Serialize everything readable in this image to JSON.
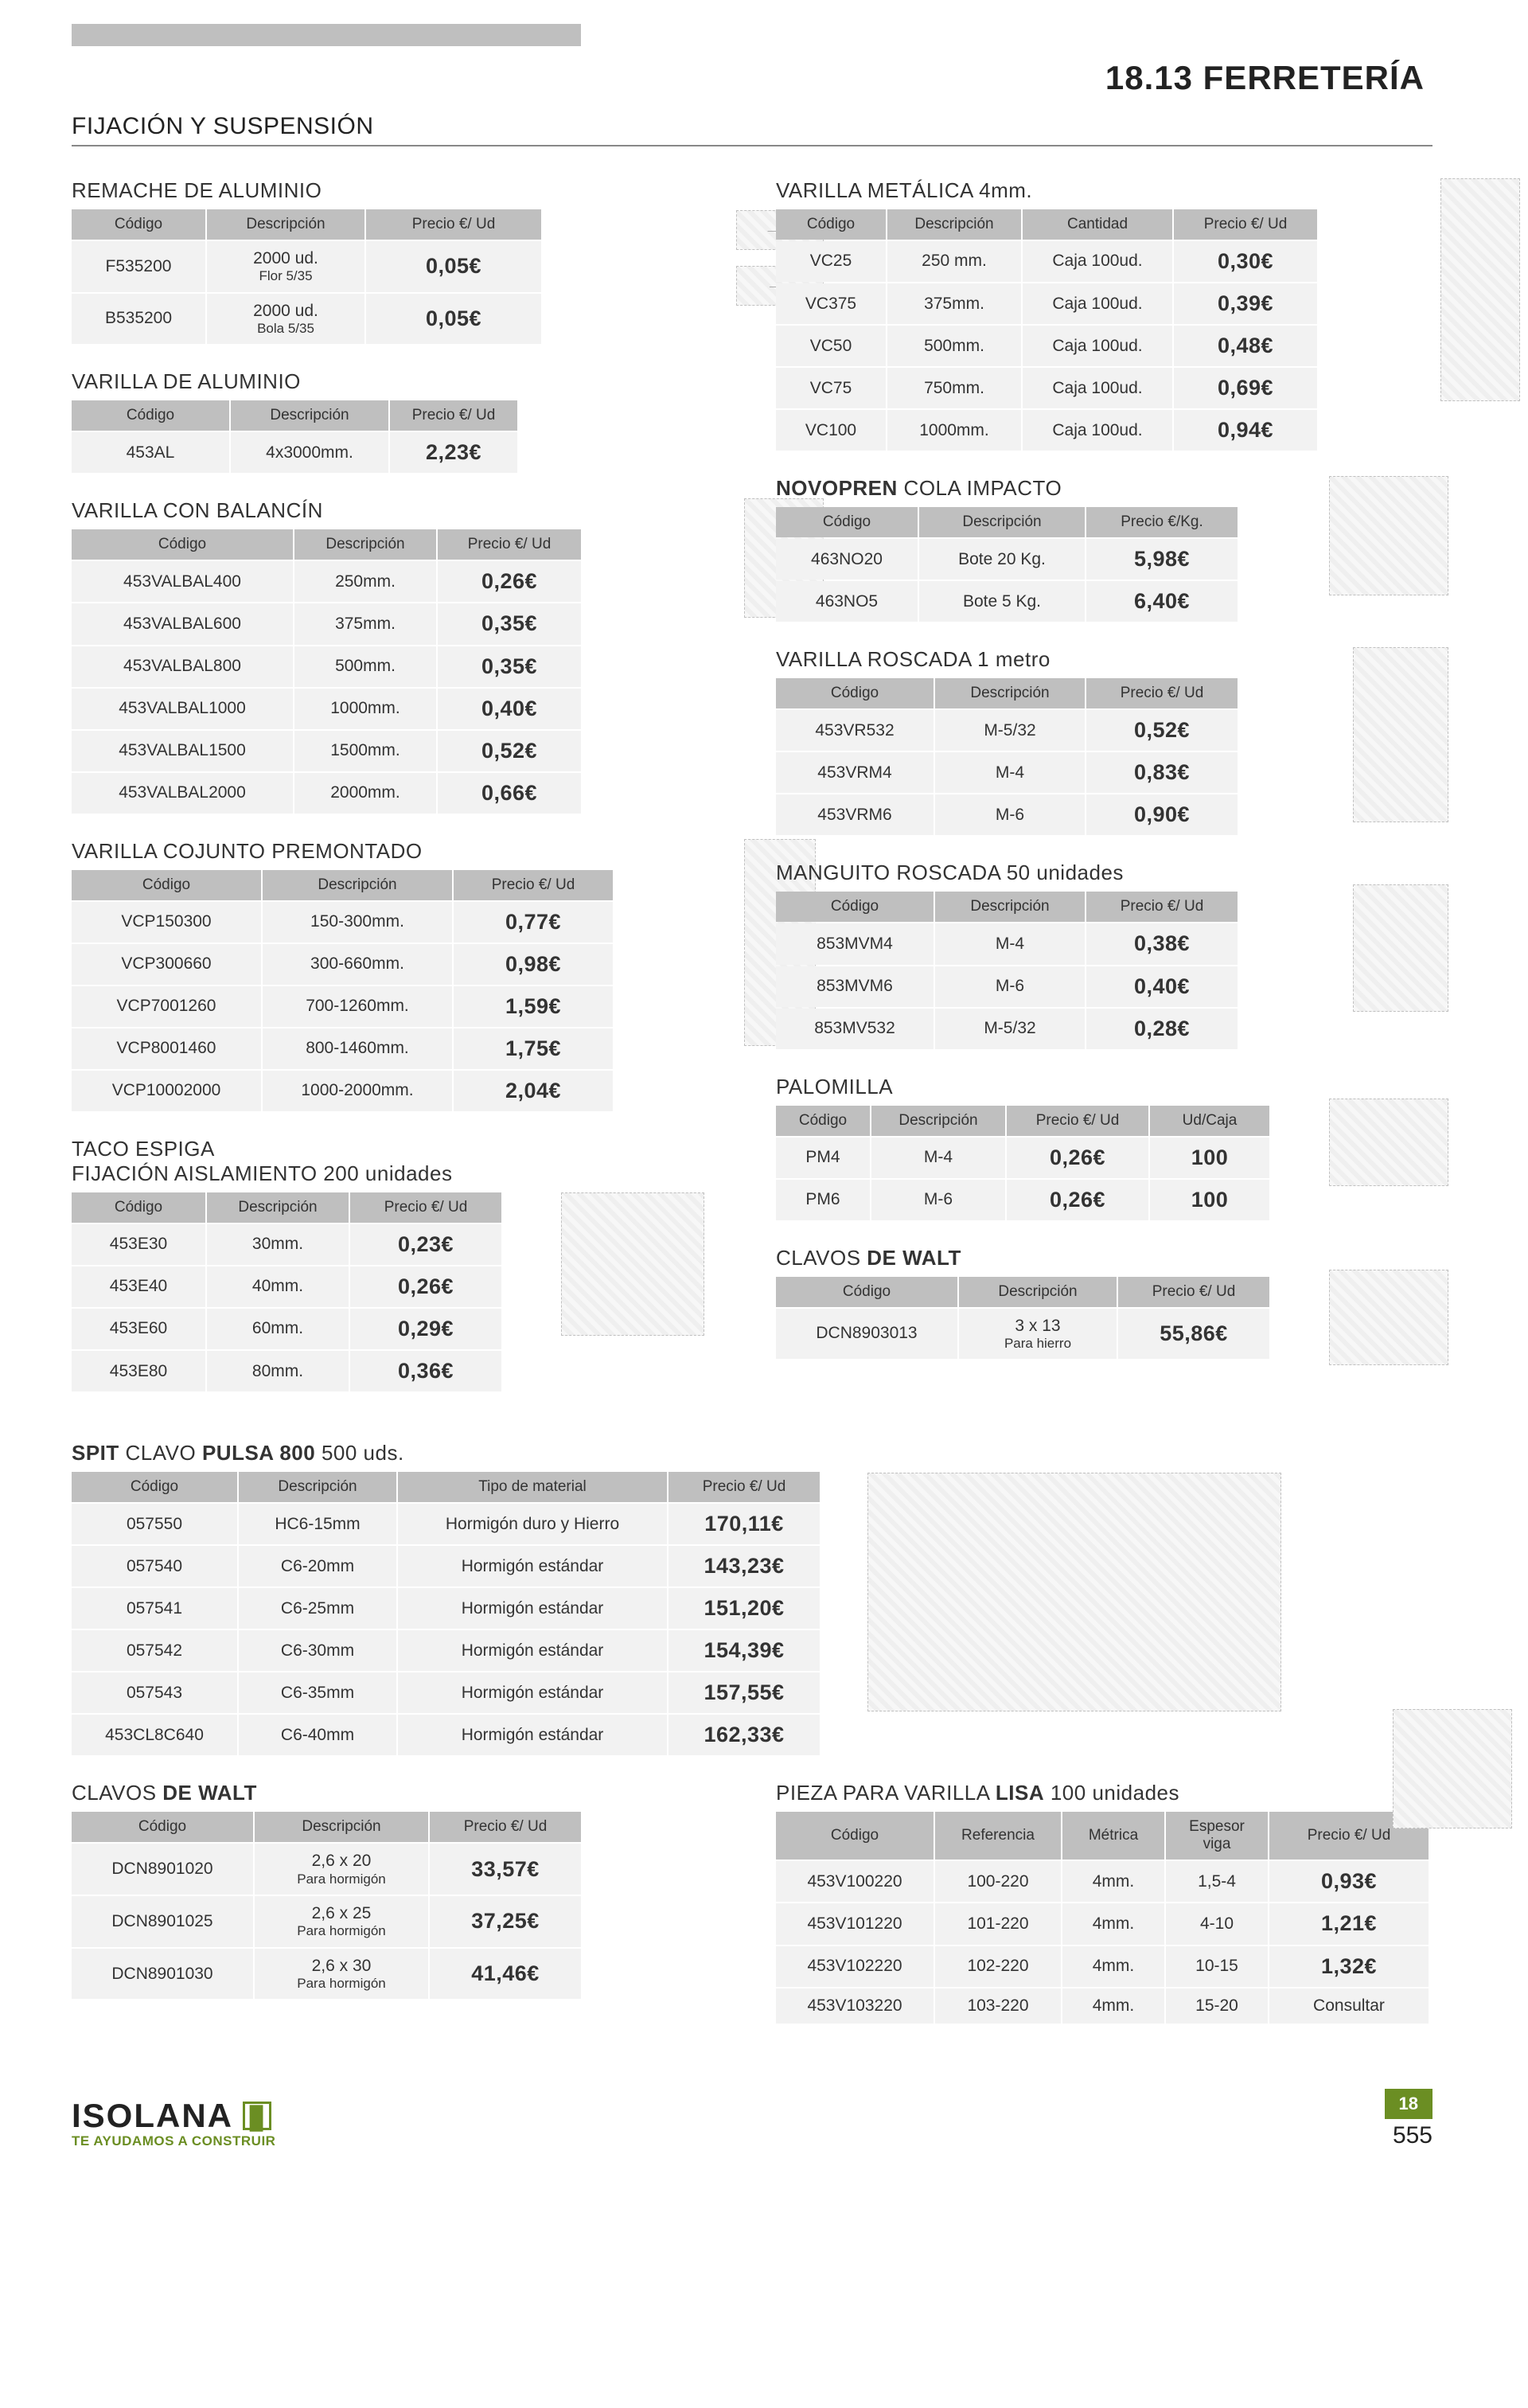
{
  "document": {
    "header": "18.13 FERRETERÍA",
    "section": "FIJACIÓN Y SUSPENSIÓN",
    "footer": {
      "brand": "ISOLANA",
      "tagline": "TE AYUDAMOS A CONSTRUIR",
      "chapter": "18",
      "page": "555"
    }
  },
  "headers": {
    "codigo": "Código",
    "descripcion": "Descripción",
    "precio_ud": "Precio €/ Ud",
    "precio_kg": "Precio €/Kg.",
    "cantidad": "Cantidad",
    "tipo_material": "Tipo de material",
    "referencia": "Referencia",
    "metrica": "Métrica",
    "espesor_viga": "Espesor viga",
    "ud_caja": "Ud/Caja"
  },
  "tables": {
    "remache": {
      "title": "REMACHE DE ALUMINIO",
      "rows": [
        {
          "code": "F535200",
          "desc": "2000 ud.",
          "desc2": "Flor 5/35",
          "price": "0,05€"
        },
        {
          "code": "B535200",
          "desc": "2000 ud.",
          "desc2": "Bola 5/35",
          "price": "0,05€"
        }
      ]
    },
    "varilla_al": {
      "title": "VARILLA DE ALUMINIO",
      "rows": [
        {
          "code": "453AL",
          "desc": "4x3000mm.",
          "price": "2,23€"
        }
      ]
    },
    "balancin": {
      "title": "VARILLA CON BALANCÍN",
      "rows": [
        {
          "code": "453VALBAL400",
          "desc": "250mm.",
          "price": "0,26€"
        },
        {
          "code": "453VALBAL600",
          "desc": "375mm.",
          "price": "0,35€"
        },
        {
          "code": "453VALBAL800",
          "desc": "500mm.",
          "price": "0,35€"
        },
        {
          "code": "453VALBAL1000",
          "desc": "1000mm.",
          "price": "0,40€"
        },
        {
          "code": "453VALBAL1500",
          "desc": "1500mm.",
          "price": "0,52€"
        },
        {
          "code": "453VALBAL2000",
          "desc": "2000mm.",
          "price": "0,66€"
        }
      ]
    },
    "premontado": {
      "title": "VARILLA COJUNTO PREMONTADO",
      "rows": [
        {
          "code": "VCP150300",
          "desc": "150-300mm.",
          "price": "0,77€"
        },
        {
          "code": "VCP300660",
          "desc": "300-660mm.",
          "price": "0,98€"
        },
        {
          "code": "VCP7001260",
          "desc": "700-1260mm.",
          "price": "1,59€"
        },
        {
          "code": "VCP8001460",
          "desc": "800-1460mm.",
          "price": "1,75€"
        },
        {
          "code": "VCP10002000",
          "desc": "1000-2000mm.",
          "price": "2,04€"
        }
      ]
    },
    "taco": {
      "title_a": "TACO ESPIGA",
      "title_b": "FIJACIÓN AISLAMIENTO 200 unidades",
      "rows": [
        {
          "code": "453E30",
          "desc": "30mm.",
          "price": "0,23€"
        },
        {
          "code": "453E40",
          "desc": "40mm.",
          "price": "0,26€"
        },
        {
          "code": "453E60",
          "desc": "60mm.",
          "price": "0,29€"
        },
        {
          "code": "453E80",
          "desc": "80mm.",
          "price": "0,36€"
        }
      ]
    },
    "varilla_met": {
      "title": "VARILLA METÁLICA 4mm.",
      "rows": [
        {
          "code": "VC25",
          "desc": "250 mm.",
          "qty": "Caja 100ud.",
          "price": "0,30€"
        },
        {
          "code": "VC375",
          "desc": "375mm.",
          "qty": "Caja 100ud.",
          "price": "0,39€"
        },
        {
          "code": "VC50",
          "desc": "500mm.",
          "qty": "Caja 100ud.",
          "price": "0,48€"
        },
        {
          "code": "VC75",
          "desc": "750mm.",
          "qty": "Caja 100ud.",
          "price": "0,69€"
        },
        {
          "code": "VC100",
          "desc": "1000mm.",
          "qty": "Caja 100ud.",
          "price": "0,94€"
        }
      ]
    },
    "novopren": {
      "title_a": "NOVOPREN",
      "title_b": " COLA IMPACTO",
      "rows": [
        {
          "code": "463NO20",
          "desc": "Bote 20 Kg.",
          "price": "5,98€"
        },
        {
          "code": "463NO5",
          "desc": "Bote 5 Kg.",
          "price": "6,40€"
        }
      ]
    },
    "roscada": {
      "title": "VARILLA ROSCADA 1 metro",
      "rows": [
        {
          "code": "453VR532",
          "desc": "M-5/32",
          "price": "0,52€"
        },
        {
          "code": "453VRM4",
          "desc": "M-4",
          "price": "0,83€"
        },
        {
          "code": "453VRM6",
          "desc": "M-6",
          "price": "0,90€"
        }
      ]
    },
    "manguito": {
      "title": "MANGUITO ROSCADA 50 unidades",
      "rows": [
        {
          "code": "853MVM4",
          "desc": "M-4",
          "price": "0,38€"
        },
        {
          "code": "853MVM6",
          "desc": "M-6",
          "price": "0,40€"
        },
        {
          "code": "853MV532",
          "desc": "M-5/32",
          "price": "0,28€"
        }
      ]
    },
    "palomilla": {
      "title": "PALOMILLA",
      "rows": [
        {
          "code": "PM4",
          "desc": "M-4",
          "price": "0,26€",
          "box": "100"
        },
        {
          "code": "PM6",
          "desc": "M-6",
          "price": "0,26€",
          "box": "100"
        }
      ]
    },
    "dewalt1": {
      "title_a": "CLAVOS ",
      "title_b": "DE WALT",
      "rows": [
        {
          "code": "DCN8903013",
          "desc": "3 x 13",
          "desc2": "Para hierro",
          "price": "55,86€"
        }
      ]
    },
    "spit": {
      "title_a": "SPIT",
      "title_b": " CLAVO ",
      "title_c": "PULSA 800",
      "title_d": " 500 uds.",
      "rows": [
        {
          "code": "057550",
          "desc": "HC6-15mm",
          "mat": "Hormigón duro y Hierro",
          "price": "170,11€"
        },
        {
          "code": "057540",
          "desc": "C6-20mm",
          "mat": "Hormigón estándar",
          "price": "143,23€"
        },
        {
          "code": "057541",
          "desc": "C6-25mm",
          "mat": "Hormigón estándar",
          "price": "151,20€"
        },
        {
          "code": "057542",
          "desc": "C6-30mm",
          "mat": "Hormigón estándar",
          "price": "154,39€"
        },
        {
          "code": "057543",
          "desc": "C6-35mm",
          "mat": "Hormigón estándar",
          "price": "157,55€"
        },
        {
          "code": "453CL8C640",
          "desc": "C6-40mm",
          "mat": "Hormigón estándar",
          "price": "162,33€"
        }
      ]
    },
    "dewalt2": {
      "title_a": "CLAVOS ",
      "title_b": "DE WALT",
      "rows": [
        {
          "code": "DCN8901020",
          "desc": "2,6 x 20",
          "desc2": "Para hormigón",
          "price": "33,57€"
        },
        {
          "code": "DCN8901025",
          "desc": "2,6 x 25",
          "desc2": "Para hormigón",
          "price": "37,25€"
        },
        {
          "code": "DCN8901030",
          "desc": "2,6 x 30",
          "desc2": "Para hormigón",
          "price": "41,46€"
        }
      ]
    },
    "pieza_lisa": {
      "title_a": "PIEZA PARA VARILLA ",
      "title_b": "LISA",
      "title_c": " 100 unidades",
      "rows": [
        {
          "code": "453V100220",
          "ref": "100-220",
          "met": "4mm.",
          "esp": "1,5-4",
          "price": "0,93€"
        },
        {
          "code": "453V101220",
          "ref": "101-220",
          "met": "4mm.",
          "esp": "4-10",
          "price": "1,21€"
        },
        {
          "code": "453V102220",
          "ref": "102-220",
          "met": "4mm.",
          "esp": "10-15",
          "price": "1,32€"
        },
        {
          "code": "453V103220",
          "ref": "103-220",
          "met": "4mm.",
          "esp": "15-20",
          "price": "Consultar"
        }
      ]
    }
  },
  "style": {
    "header_bg": "#bfbfbf",
    "row_bg": "#f2f2f2",
    "accent": "#6b8e23",
    "text": "#222222",
    "price_weight": 800
  }
}
